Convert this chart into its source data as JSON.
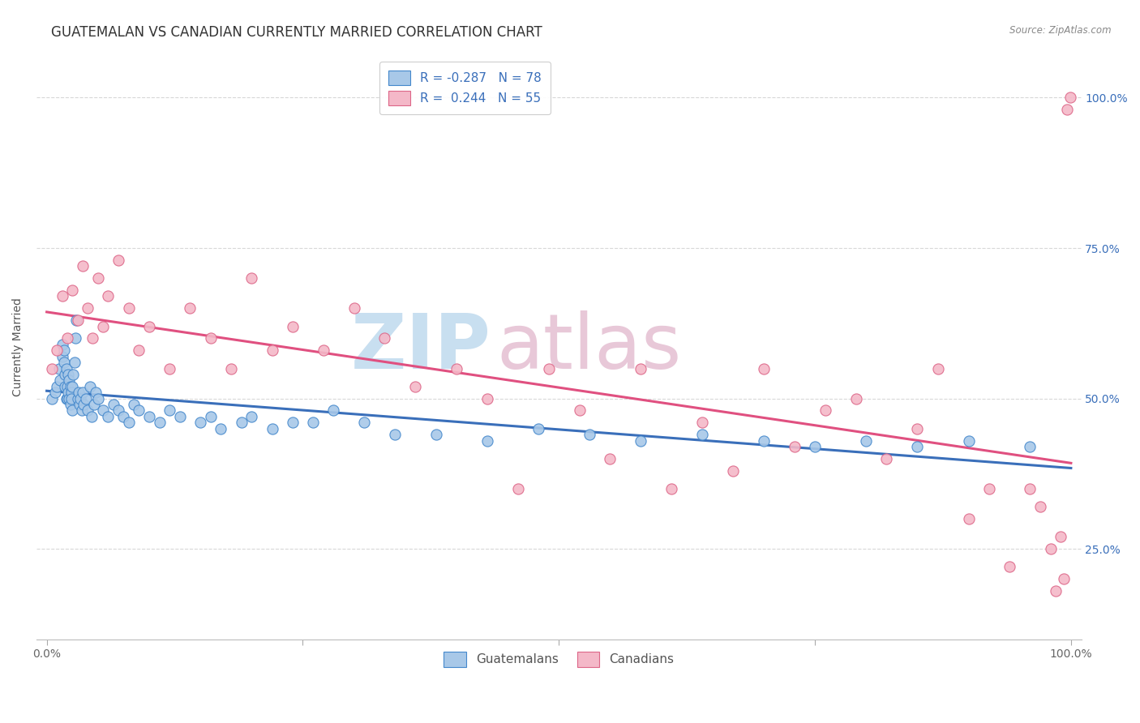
{
  "title": "GUATEMALAN VS CANADIAN CURRENTLY MARRIED CORRELATION CHART",
  "source": "Source: ZipAtlas.com",
  "ylabel": "Currently Married",
  "watermark_line1": "ZIP",
  "watermark_line2": "atlas",
  "blue_R": -0.287,
  "blue_N": 78,
  "pink_R": 0.244,
  "pink_N": 55,
  "blue_color": "#a8c8e8",
  "pink_color": "#f4b8c8",
  "blue_line_color": "#3a6fba",
  "pink_line_color": "#e05080",
  "blue_edge_color": "#4488cc",
  "pink_edge_color": "#dd6688",
  "ytick_vals": [
    0.25,
    0.5,
    0.75,
    1.0
  ],
  "ytick_labels": [
    "25.0%",
    "50.0%",
    "75.0%",
    "100.0%"
  ],
  "blue_scatter_x": [
    0.005,
    0.008,
    0.01,
    0.012,
    0.013,
    0.015,
    0.015,
    0.017,
    0.017,
    0.018,
    0.018,
    0.019,
    0.019,
    0.02,
    0.02,
    0.021,
    0.021,
    0.022,
    0.022,
    0.023,
    0.023,
    0.024,
    0.024,
    0.025,
    0.025,
    0.026,
    0.027,
    0.028,
    0.029,
    0.03,
    0.031,
    0.032,
    0.033,
    0.034,
    0.035,
    0.036,
    0.038,
    0.04,
    0.042,
    0.044,
    0.046,
    0.048,
    0.05,
    0.055,
    0.06,
    0.065,
    0.07,
    0.075,
    0.08,
    0.085,
    0.09,
    0.1,
    0.11,
    0.12,
    0.13,
    0.15,
    0.16,
    0.17,
    0.19,
    0.2,
    0.22,
    0.24,
    0.26,
    0.28,
    0.31,
    0.34,
    0.38,
    0.43,
    0.48,
    0.53,
    0.58,
    0.64,
    0.7,
    0.75,
    0.8,
    0.85,
    0.9,
    0.96
  ],
  "blue_scatter_y": [
    0.5,
    0.51,
    0.52,
    0.55,
    0.53,
    0.57,
    0.59,
    0.58,
    0.56,
    0.54,
    0.52,
    0.5,
    0.55,
    0.52,
    0.5,
    0.54,
    0.51,
    0.53,
    0.5,
    0.52,
    0.49,
    0.51,
    0.5,
    0.52,
    0.48,
    0.54,
    0.56,
    0.6,
    0.63,
    0.5,
    0.51,
    0.49,
    0.5,
    0.48,
    0.51,
    0.49,
    0.5,
    0.48,
    0.52,
    0.47,
    0.49,
    0.51,
    0.5,
    0.48,
    0.47,
    0.49,
    0.48,
    0.47,
    0.46,
    0.49,
    0.48,
    0.47,
    0.46,
    0.48,
    0.47,
    0.46,
    0.47,
    0.45,
    0.46,
    0.47,
    0.45,
    0.46,
    0.46,
    0.48,
    0.46,
    0.44,
    0.44,
    0.43,
    0.45,
    0.44,
    0.43,
    0.44,
    0.43,
    0.42,
    0.43,
    0.42,
    0.43,
    0.42
  ],
  "pink_scatter_x": [
    0.005,
    0.01,
    0.015,
    0.02,
    0.025,
    0.03,
    0.035,
    0.04,
    0.045,
    0.05,
    0.055,
    0.06,
    0.07,
    0.08,
    0.09,
    0.1,
    0.12,
    0.14,
    0.16,
    0.18,
    0.2,
    0.22,
    0.24,
    0.27,
    0.3,
    0.33,
    0.36,
    0.4,
    0.43,
    0.46,
    0.49,
    0.52,
    0.55,
    0.58,
    0.61,
    0.64,
    0.67,
    0.7,
    0.73,
    0.76,
    0.79,
    0.82,
    0.85,
    0.87,
    0.9,
    0.92,
    0.94,
    0.96,
    0.97,
    0.98,
    0.985,
    0.99,
    0.993,
    0.996,
    0.999
  ],
  "pink_scatter_y": [
    0.55,
    0.58,
    0.67,
    0.6,
    0.68,
    0.63,
    0.72,
    0.65,
    0.6,
    0.7,
    0.62,
    0.67,
    0.73,
    0.65,
    0.58,
    0.62,
    0.55,
    0.65,
    0.6,
    0.55,
    0.7,
    0.58,
    0.62,
    0.58,
    0.65,
    0.6,
    0.52,
    0.55,
    0.5,
    0.35,
    0.55,
    0.48,
    0.4,
    0.55,
    0.35,
    0.46,
    0.38,
    0.55,
    0.42,
    0.48,
    0.5,
    0.4,
    0.45,
    0.55,
    0.3,
    0.35,
    0.22,
    0.35,
    0.32,
    0.25,
    0.18,
    0.27,
    0.2,
    0.98,
    1.0
  ],
  "background_color": "#ffffff",
  "grid_color": "#d8d8d8",
  "title_fontsize": 12,
  "axis_label_fontsize": 10,
  "tick_fontsize": 10,
  "legend_fontsize": 11,
  "watermark_blue": "#c8dff0",
  "watermark_pink": "#e8c8d8",
  "watermark_fontsize": 68
}
